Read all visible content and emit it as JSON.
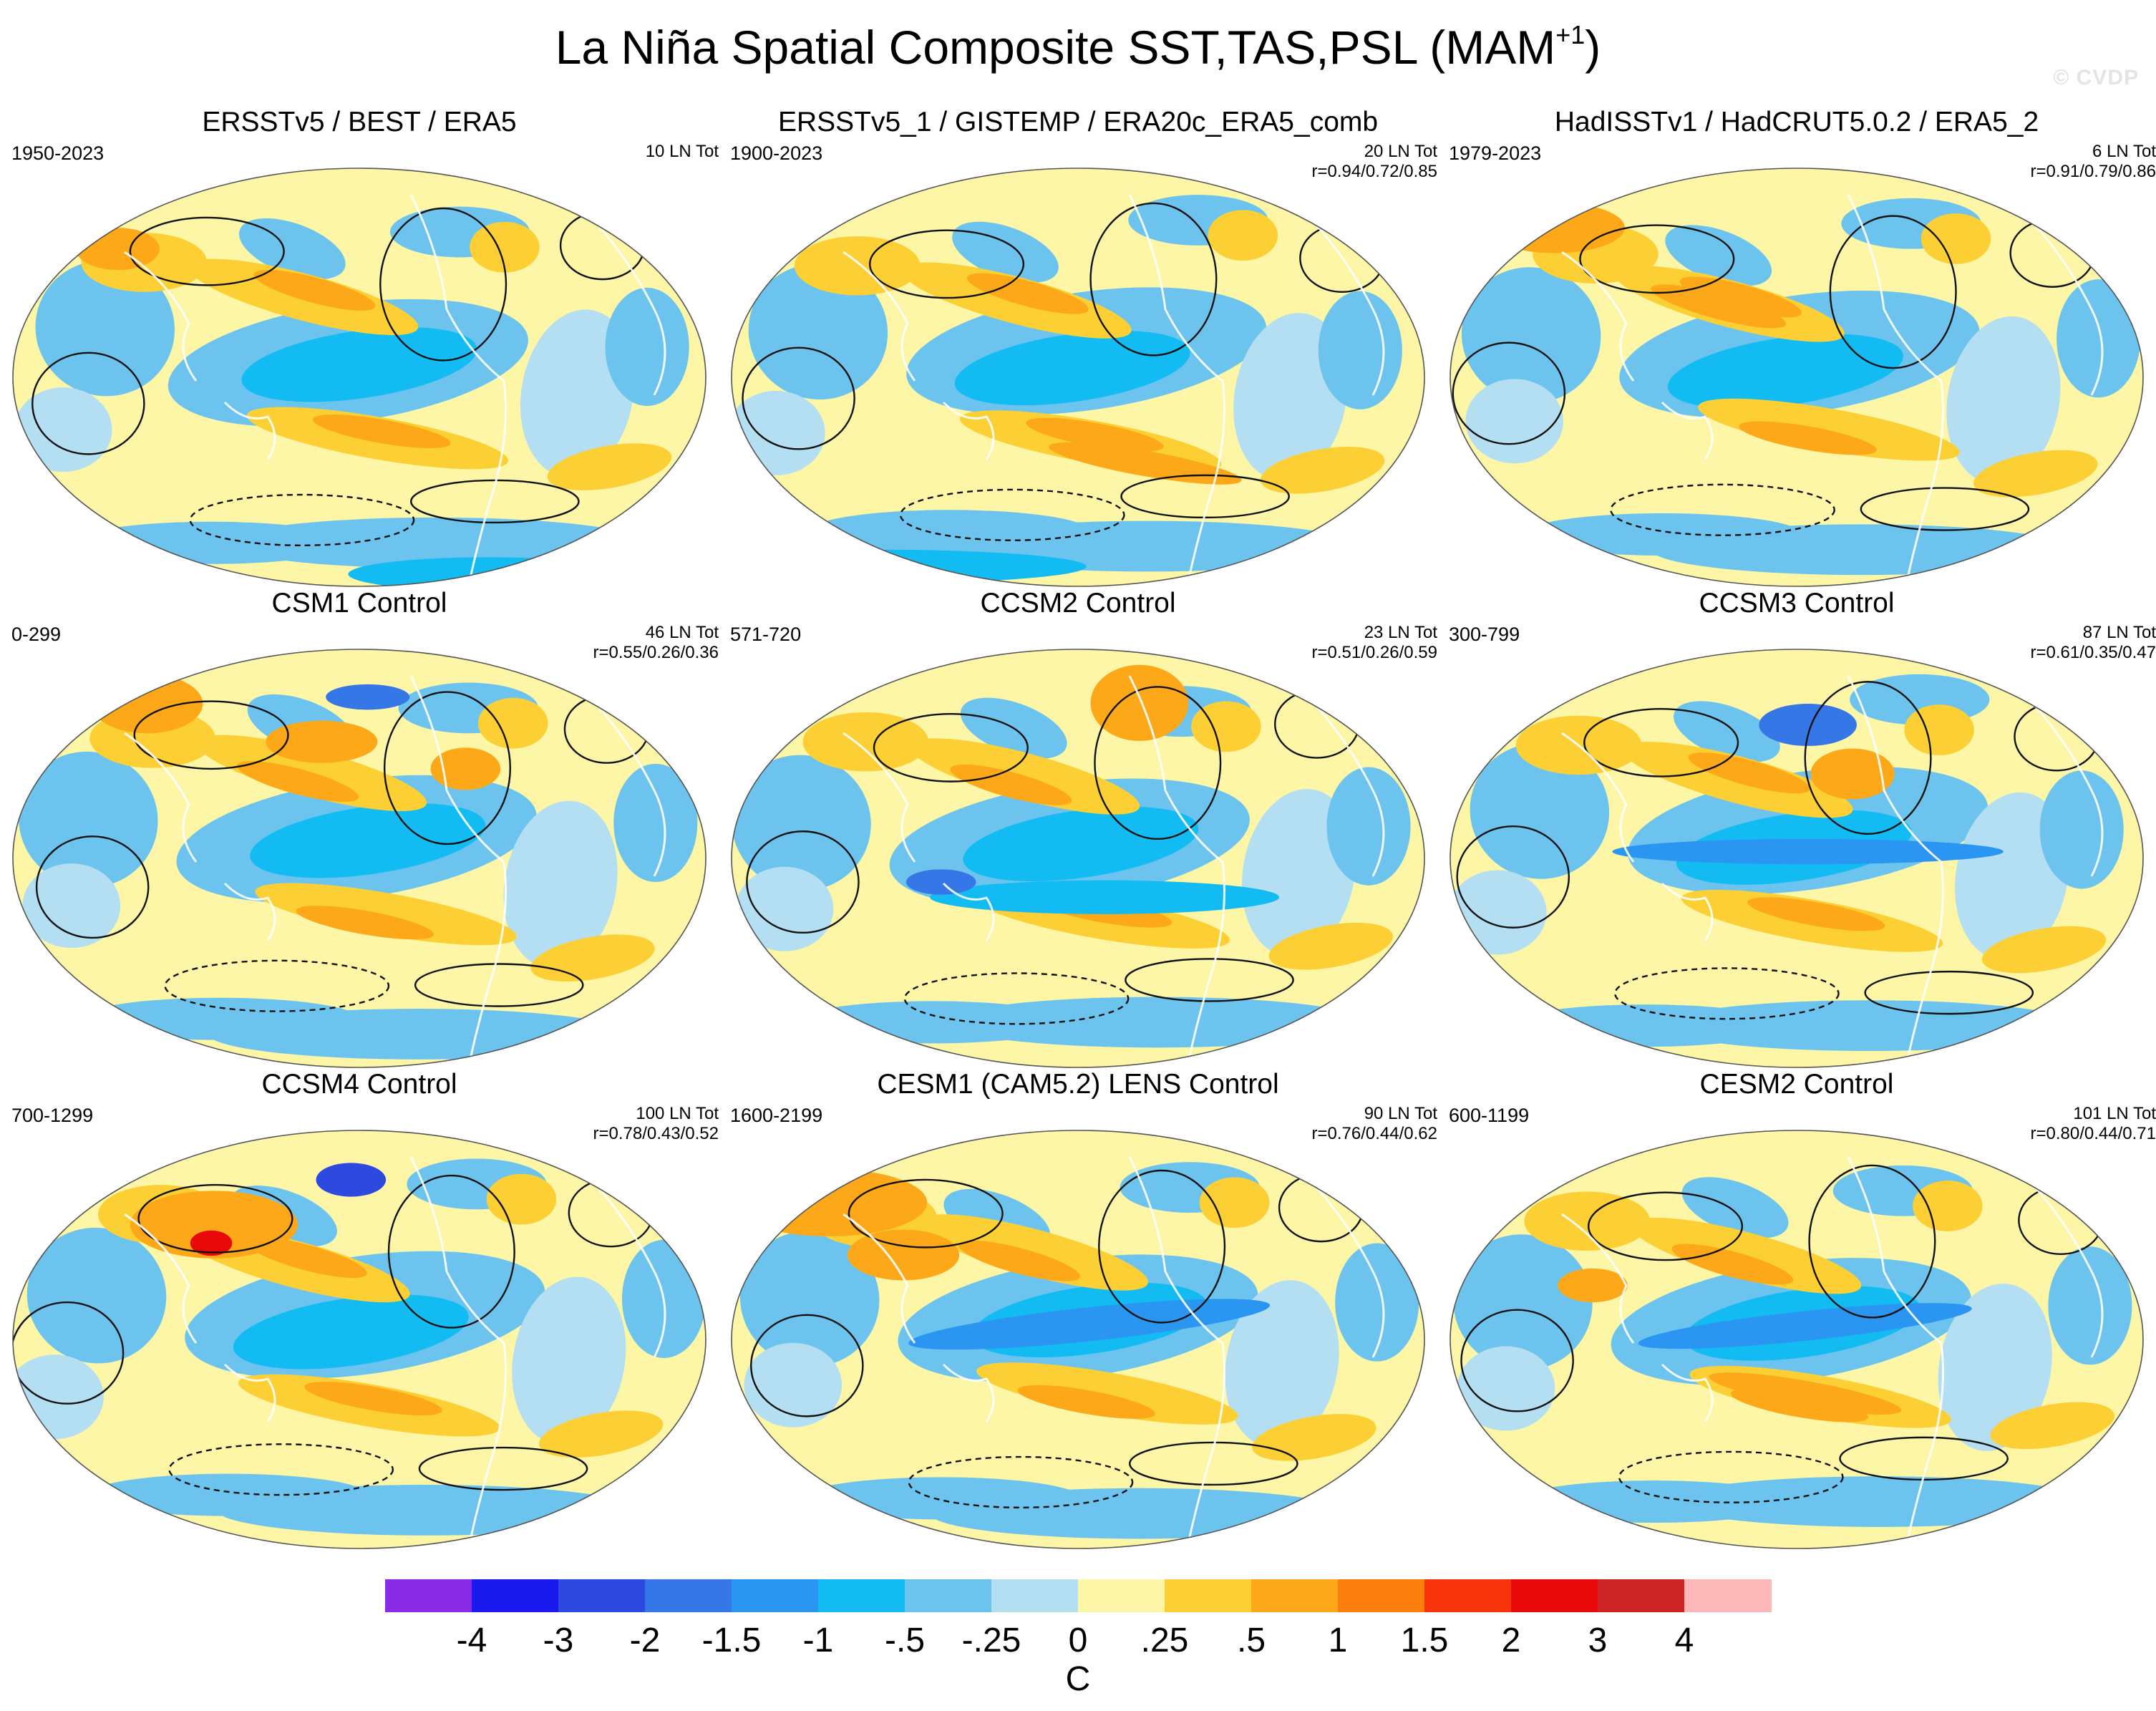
{
  "figure": {
    "title": "La Niña Spatial Composite SST,TAS,PSL (MAM",
    "title_superscript": "+1",
    "title_close": ")",
    "watermark": "© CVDP"
  },
  "chart_data": {
    "type": "heatmap",
    "description_type": "global map composites",
    "units": "C",
    "colorbar": {
      "levels": [
        "-4",
        "-3",
        "-2",
        "-1.5",
        "-1",
        "-.5",
        "-.25",
        "0",
        ".25",
        ".5",
        "1",
        "1.5",
        "2",
        "3",
        "4"
      ],
      "colors": [
        "#8a2be8",
        "#1a1aee",
        "#2e49e0",
        "#3677e8",
        "#2a96f2",
        "#12bcf2",
        "#6cc4ee",
        "#b4dff2",
        "#fcf6a6",
        "#fcd035",
        "#fca818",
        "#fc7e0c",
        "#f8340a",
        "#e80a0a",
        "#cc2424",
        "#fcb8b8"
      ]
    },
    "panels": [
      {
        "title": "ERSSTv5 / BEST / ERA5",
        "period": "1950-2023",
        "events": "10 LN Tot",
        "correlation": ""
      },
      {
        "title": "ERSSTv5_1 / GISTEMP / ERA20c_ERA5_comb",
        "period": "1900-2023",
        "events": "20 LN Tot",
        "correlation": "r=0.94/0.72/0.85"
      },
      {
        "title": "HadISSTv1 / HadCRUT5.0.2 / ERA5_2",
        "period": "1979-2023",
        "events": "6 LN Tot",
        "correlation": "r=0.91/0.79/0.86"
      },
      {
        "title": "CSM1 Control",
        "period": "0-299",
        "events": "46 LN Tot",
        "correlation": "r=0.55/0.26/0.36"
      },
      {
        "title": "CCSM2 Control",
        "period": "571-720",
        "events": "23 LN Tot",
        "correlation": "r=0.51/0.26/0.59"
      },
      {
        "title": "CCSM3 Control",
        "period": "300-799",
        "events": "87 LN Tot",
        "correlation": "r=0.61/0.35/0.47"
      },
      {
        "title": "CCSM4 Control",
        "period": "700-1299",
        "events": "100 LN Tot",
        "correlation": "r=0.78/0.43/0.52"
      },
      {
        "title": "CESM1 (CAM5.2) LENS Control",
        "period": "1600-2199",
        "events": "90 LN Tot",
        "correlation": "r=0.76/0.44/0.62"
      },
      {
        "title": "CESM2 Control",
        "period": "600-1199",
        "events": "101 LN Tot",
        "correlation": "r=0.80/0.44/0.71"
      }
    ]
  }
}
